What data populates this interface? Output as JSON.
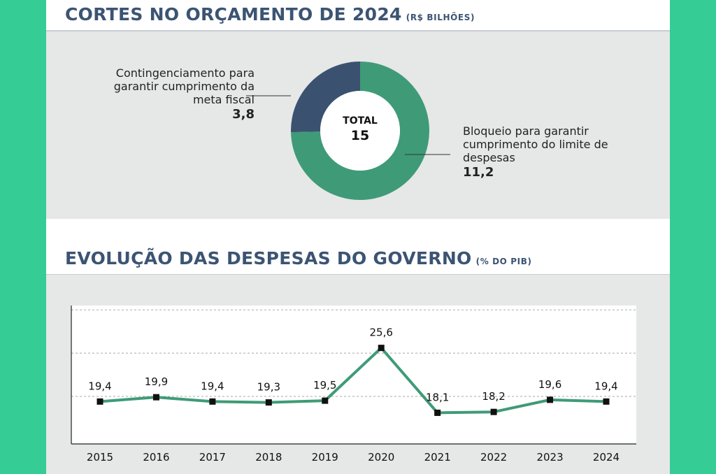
{
  "colors": {
    "background_green": "#35cc96",
    "title_navy": "#3c5473",
    "panel_gray": "#e6e7e7",
    "donut_green": "#3f9b77",
    "donut_navy": "#3a5270",
    "line_green": "#3f9b77",
    "marker": "#111111"
  },
  "donut": {
    "title": "CORTES NO ORÇAMENTO DE 2024",
    "unit": "(R$ BILHÕES)",
    "center_label": "TOTAL",
    "center_value": "15",
    "segments": [
      {
        "label": "Contingenciamento para garantir cumprimento da meta fiscal",
        "value_text": "3,8",
        "value": 3.8,
        "color": "#3a5270"
      },
      {
        "label": "Bloqueio para garantir cumprimento do limite de despesas",
        "value_text": "11,2",
        "value": 11.2,
        "color": "#3f9b77"
      }
    ]
  },
  "chart_data": {
    "type": "line",
    "title": "EVOLUÇÃO DAS DESPESAS DO GOVERNO",
    "unit": "(% DO PIB)",
    "xlabel": "",
    "ylabel": "",
    "x": [
      "2015",
      "2016",
      "2017",
      "2018",
      "2019",
      "2020",
      "2021",
      "2022",
      "2023",
      "2024"
    ],
    "values": [
      19.4,
      19.9,
      19.4,
      19.3,
      19.5,
      25.6,
      18.1,
      18.2,
      19.6,
      19.4
    ],
    "labels": [
      "19,4",
      "19,9",
      "19,4",
      "19,3",
      "19,5",
      "25,6",
      "18,1",
      "18,2",
      "19,6",
      "19,4"
    ],
    "ylim": [
      14.5,
      30.5
    ],
    "gridlines": [
      20,
      25,
      30
    ],
    "grid": true,
    "legend": "none"
  }
}
